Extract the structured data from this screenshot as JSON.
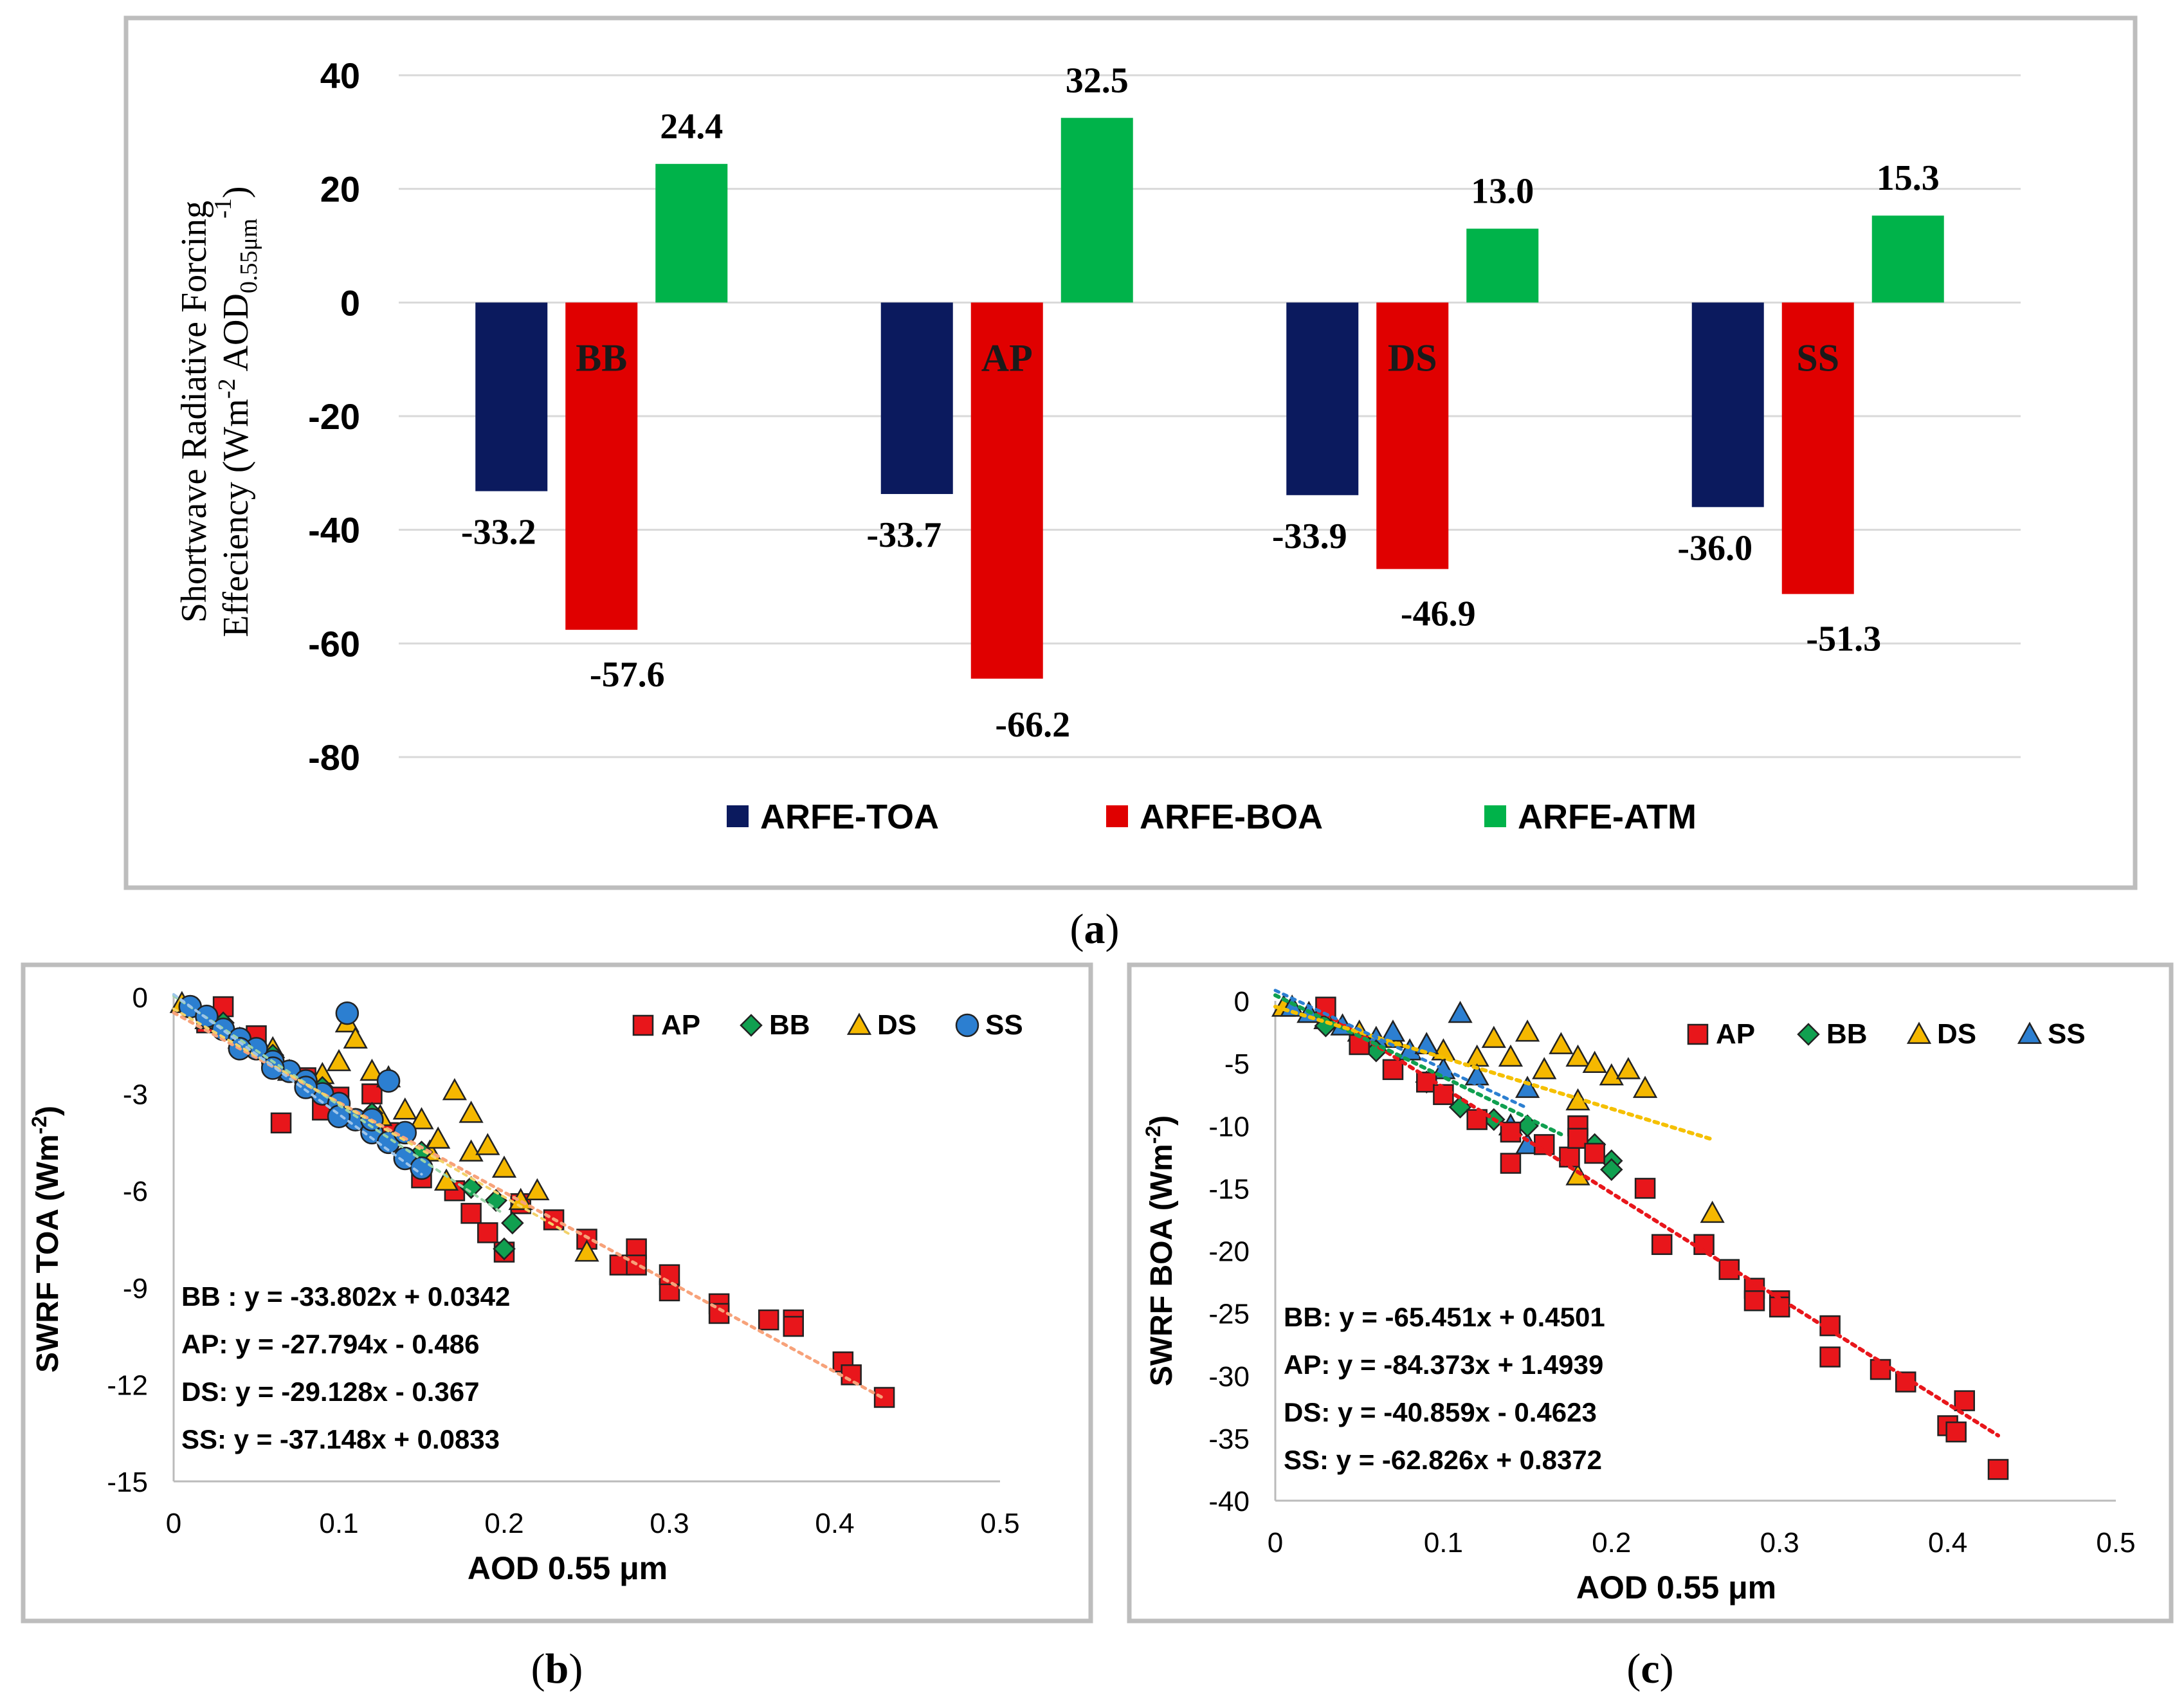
{
  "chart_data": [
    {
      "panel": "a",
      "type": "bar",
      "caption": {
        "open": "(",
        "letter": "a",
        "close": ")"
      },
      "ylabel": {
        "line1": "Shortwave Radiative Forcing",
        "line2_main": "Effeciency (Wm",
        "line2_sup1": "-2",
        "line2_mid": " AOD",
        "line2_sub": "0.55μm",
        "line2_sup2": "-1",
        "line2_end": ")"
      },
      "ylim": [
        -80,
        40
      ],
      "yticks": [
        40,
        20,
        0,
        -20,
        -40,
        -60,
        -80
      ],
      "categories": [
        "BB",
        "AP",
        "DS",
        "SS"
      ],
      "series": [
        {
          "name": "ARFE-TOA",
          "color": "#0b1a5e",
          "values": [
            -33.2,
            -33.7,
            -33.9,
            -36.0
          ],
          "labels": [
            "-33.2",
            "-33.7",
            "-33.9",
            "-36.0"
          ]
        },
        {
          "name": "ARFE-BOA",
          "color": "#e00000",
          "values": [
            -57.6,
            -66.2,
            -46.9,
            -51.3
          ],
          "labels": [
            "-57.6",
            "-66.2",
            "-46.9",
            "-51.3"
          ]
        },
        {
          "name": "ARFE-ATM",
          "color": "#00b34a",
          "values": [
            24.4,
            32.5,
            13.0,
            15.3
          ],
          "labels": [
            "24.4",
            "32.5",
            "13.0",
            "15.3"
          ]
        }
      ]
    },
    {
      "panel": "b",
      "type": "scatter",
      "caption": {
        "open": "(",
        "letter": "b",
        "close": ")"
      },
      "xlabel": "AOD 0.55 μm",
      "ylabel_main": "SWRF TOA (Wm",
      "ylabel_sup": "-2",
      "ylabel_end": ")",
      "xlim": [
        0,
        0.5
      ],
      "ylim": [
        -15,
        0
      ],
      "xticks": [
        "0",
        "0.1",
        "0.2",
        "0.3",
        "0.4",
        "0.5"
      ],
      "yticks": [
        "0",
        "-3",
        "-6",
        "-9",
        "-12",
        "-15"
      ],
      "legend": [
        "AP",
        "BB",
        "DS",
        "SS"
      ],
      "equations": [
        "BB : y = -33.802x + 0.0342",
        "AP: y = -27.794x - 0.486",
        "DS: y = -29.128x - 0.367",
        "SS: y = -37.148x + 0.0833"
      ],
      "fits": {
        "AP": {
          "slope": -27.794,
          "intercept": -0.486,
          "range": [
            0,
            0.43
          ]
        },
        "BB": {
          "slope": -33.802,
          "intercept": 0.0342,
          "range": [
            0,
            0.2
          ]
        },
        "DS": {
          "slope": -29.128,
          "intercept": -0.367,
          "range": [
            0,
            0.24
          ]
        },
        "SS": {
          "slope": -37.148,
          "intercept": 0.0833,
          "range": [
            0,
            0.15
          ]
        }
      },
      "series": [
        {
          "name": "AP",
          "color": "#e8161b",
          "marker": "square",
          "x": [
            0.02,
            0.03,
            0.05,
            0.065,
            0.08,
            0.09,
            0.1,
            0.12,
            0.13,
            0.15,
            0.17,
            0.18,
            0.19,
            0.2,
            0.21,
            0.23,
            0.25,
            0.27,
            0.28,
            0.28,
            0.3,
            0.3,
            0.33,
            0.33,
            0.36,
            0.375,
            0.375,
            0.405,
            0.41,
            0.43
          ],
          "y": [
            -0.8,
            -0.3,
            -1.2,
            -3.9,
            -2.5,
            -3.5,
            -3.1,
            -3.0,
            -4.2,
            -5.6,
            -6.0,
            -6.7,
            -7.3,
            -7.9,
            -6.4,
            -6.9,
            -7.5,
            -8.3,
            -7.8,
            -8.3,
            -9.1,
            -8.6,
            -9.5,
            -9.8,
            -10.0,
            -10.0,
            -10.2,
            -11.3,
            -11.7,
            -12.4
          ]
        },
        {
          "name": "BB",
          "color": "#10a050",
          "marker": "diamond",
          "x": [
            0.03,
            0.06,
            0.09,
            0.12,
            0.15,
            0.18,
            0.195,
            0.2,
            0.205
          ],
          "y": [
            -0.8,
            -1.8,
            -2.8,
            -3.6,
            -4.8,
            -5.9,
            -6.3,
            -7.8,
            -7.0
          ]
        },
        {
          "name": "DS",
          "color": "#f5b800",
          "marker": "triangle",
          "x": [
            0.005,
            0.02,
            0.04,
            0.06,
            0.07,
            0.09,
            0.1,
            0.105,
            0.11,
            0.12,
            0.125,
            0.13,
            0.14,
            0.15,
            0.155,
            0.16,
            0.165,
            0.17,
            0.18,
            0.18,
            0.19,
            0.2,
            0.21,
            0.22,
            0.25
          ],
          "y": [
            -0.2,
            -0.7,
            -1.3,
            -1.6,
            -2.3,
            -2.4,
            -2.0,
            -0.8,
            -1.3,
            -2.3,
            -3.7,
            -2.5,
            -3.5,
            -3.8,
            -4.8,
            -4.4,
            -5.7,
            -2.9,
            -3.6,
            -4.8,
            -4.6,
            -5.3,
            -6.3,
            -6.0,
            -7.9
          ]
        },
        {
          "name": "SS",
          "color": "#2c7fd1",
          "marker": "circle",
          "x": [
            0.01,
            0.02,
            0.03,
            0.04,
            0.05,
            0.06,
            0.07,
            0.08,
            0.09,
            0.1,
            0.105,
            0.11,
            0.12,
            0.13,
            0.14,
            0.15,
            0.04,
            0.06,
            0.08,
            0.1,
            0.12,
            0.13,
            0.14
          ],
          "y": [
            -0.3,
            -0.6,
            -1.0,
            -1.3,
            -1.6,
            -2.0,
            -2.3,
            -2.6,
            -3.0,
            -3.3,
            -0.5,
            -3.8,
            -4.2,
            -4.5,
            -5.0,
            -5.3,
            -1.6,
            -2.2,
            -2.8,
            -3.7,
            -3.8,
            -2.6,
            -4.2
          ]
        }
      ]
    },
    {
      "panel": "c",
      "type": "scatter",
      "caption": {
        "open": "(",
        "letter": "c",
        "close": ")"
      },
      "xlabel": "AOD 0.55 μm",
      "ylabel_main": "SWRF BOA (Wm",
      "ylabel_sup": "-2",
      "ylabel_end": ")",
      "xlim": [
        0,
        0.5
      ],
      "ylim": [
        -40,
        0
      ],
      "xticks": [
        "0",
        "0.1",
        "0.2",
        "0.3",
        "0.4",
        "0.5"
      ],
      "yticks": [
        "0",
        "-5",
        "-10",
        "-15",
        "-20",
        "-25",
        "-30",
        "-35",
        "-40"
      ],
      "legend": [
        "AP",
        "BB",
        "DS",
        "SS"
      ],
      "equations": [
        "BB: y = -65.451x + 0.4501",
        "AP: y = -84.373x + 1.4939",
        "DS: y = -40.859x - 0.4623",
        "SS: y = -62.826x + 0.8372"
      ],
      "fits": {
        "AP": {
          "slope": -84.373,
          "intercept": 1.4939,
          "range": [
            0.03,
            0.43
          ]
        },
        "BB": {
          "slope": -65.451,
          "intercept": 0.4501,
          "range": [
            0,
            0.17
          ]
        },
        "DS": {
          "slope": -40.859,
          "intercept": -0.4623,
          "range": [
            0,
            0.26
          ]
        },
        "SS": {
          "slope": -62.826,
          "intercept": 0.8372,
          "range": [
            0,
            0.15
          ]
        }
      },
      "series": [
        {
          "name": "AP",
          "color": "#e8161b",
          "marker": "square",
          "x": [
            0.03,
            0.05,
            0.07,
            0.09,
            0.1,
            0.12,
            0.14,
            0.14,
            0.16,
            0.175,
            0.18,
            0.18,
            0.19,
            0.22,
            0.23,
            0.255,
            0.27,
            0.285,
            0.285,
            0.3,
            0.3,
            0.33,
            0.33,
            0.36,
            0.375,
            0.4,
            0.405,
            0.41,
            0.43
          ],
          "y": [
            -0.5,
            -3.5,
            -5.5,
            -6.5,
            -7.5,
            -9.5,
            -10.5,
            -13.0,
            -11.5,
            -12.5,
            -10.0,
            -11.0,
            -12.2,
            -15.0,
            -19.5,
            -19.5,
            -21.5,
            -23.0,
            -24.0,
            -24.0,
            -24.5,
            -26.0,
            -28.5,
            -29.5,
            -30.5,
            -34.0,
            -34.5,
            -32.0,
            -37.5
          ]
        },
        {
          "name": "BB",
          "color": "#10a050",
          "marker": "diamond",
          "x": [
            0.03,
            0.06,
            0.09,
            0.11,
            0.13,
            0.15,
            0.19,
            0.2,
            0.2
          ],
          "y": [
            -2.0,
            -4.0,
            -6.5,
            -8.5,
            -9.5,
            -10.0,
            -11.5,
            -12.8,
            -13.5
          ]
        },
        {
          "name": "DS",
          "color": "#f5b800",
          "marker": "triangle",
          "x": [
            0.005,
            0.03,
            0.05,
            0.07,
            0.09,
            0.1,
            0.12,
            0.13,
            0.14,
            0.15,
            0.16,
            0.17,
            0.18,
            0.18,
            0.19,
            0.2,
            0.22,
            0.26,
            0.18,
            0.21
          ],
          "y": [
            -0.5,
            -1.5,
            -2.5,
            -3.0,
            -3.5,
            -4.0,
            -4.5,
            -3.0,
            -4.5,
            -2.5,
            -5.5,
            -3.5,
            -4.5,
            -8.0,
            -5.0,
            -6.0,
            -7.0,
            -17.0,
            -14.0,
            -5.5
          ]
        },
        {
          "name": "SS",
          "color": "#2c7fd1",
          "marker": "triangle",
          "x": [
            0.01,
            0.02,
            0.04,
            0.06,
            0.08,
            0.1,
            0.11,
            0.12,
            0.14,
            0.15,
            0.15,
            0.07,
            0.09
          ],
          "y": [
            -0.5,
            -1.0,
            -2.0,
            -3.0,
            -4.0,
            -5.5,
            -1.0,
            -6.0,
            -10.0,
            -11.5,
            -7.0,
            -2.5,
            -3.5
          ]
        }
      ]
    }
  ]
}
